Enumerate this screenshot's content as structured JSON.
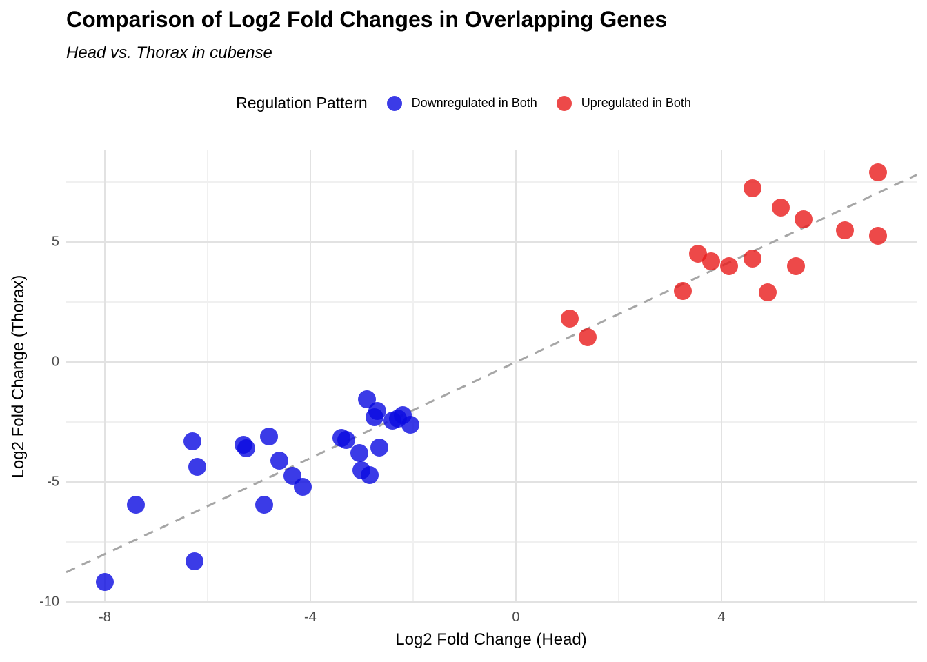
{
  "title": "Comparison of Log2 Fold Changes in Overlapping Genes",
  "subtitle": "Head vs. Thorax in cubense",
  "legend": {
    "title": "Regulation Pattern",
    "items": [
      {
        "label": "Downregulated in Both",
        "color": "rgba(10,10,225,0.8)"
      },
      {
        "label": "Upregulated in Both",
        "color": "rgba(233,28,28,0.8)"
      }
    ]
  },
  "chart_data": {
    "type": "scatter",
    "title": "Comparison of Log2 Fold Changes in Overlapping Genes",
    "subtitle": "Head vs. Thorax in cubense",
    "xlabel": "Log2 Fold Change (Head)",
    "ylabel": "Log2 Fold Change (Thorax)",
    "xlim": [
      -8.75,
      7.8
    ],
    "ylim": [
      -10.05,
      8.85
    ],
    "x_major_ticks": [
      -8,
      -4,
      0,
      4
    ],
    "x_minor_gridlines": [
      -6,
      -2,
      2,
      6
    ],
    "y_major_ticks": [
      5,
      0,
      -5,
      -10
    ],
    "y_minor_gridlines": [
      7.5,
      2.5,
      -2.5,
      -7.5
    ],
    "grid": true,
    "legend_position": "top",
    "reference_line": {
      "type": "identity_y_equals_x",
      "style": "dashed",
      "color": "#a6a6a6"
    },
    "series": [
      {
        "name": "Downregulated in Both",
        "color": "rgba(10,10,225,0.8)",
        "points": [
          [
            -8.0,
            -9.15
          ],
          [
            -7.4,
            -5.95
          ],
          [
            -6.3,
            -3.3
          ],
          [
            -6.25,
            -8.3
          ],
          [
            -6.2,
            -4.35
          ],
          [
            -5.3,
            -3.45
          ],
          [
            -5.25,
            -3.6
          ],
          [
            -4.9,
            -5.95
          ],
          [
            -4.8,
            -3.1
          ],
          [
            -4.6,
            -4.1
          ],
          [
            -4.35,
            -4.75
          ],
          [
            -4.15,
            -5.2
          ],
          [
            -3.4,
            -3.15
          ],
          [
            -3.3,
            -3.25
          ],
          [
            -3.05,
            -3.8
          ],
          [
            -3.0,
            -4.5
          ],
          [
            -2.9,
            -1.55
          ],
          [
            -2.85,
            -4.7
          ],
          [
            -2.75,
            -2.3
          ],
          [
            -2.7,
            -2.05
          ],
          [
            -2.65,
            -3.55
          ],
          [
            -2.4,
            -2.45
          ],
          [
            -2.3,
            -2.35
          ],
          [
            -2.2,
            -2.2
          ],
          [
            -2.05,
            -2.6
          ]
        ]
      },
      {
        "name": "Upregulated in Both",
        "color": "rgba(233,28,28,0.8)",
        "points": [
          [
            1.05,
            1.8
          ],
          [
            1.4,
            1.05
          ],
          [
            3.25,
            2.95
          ],
          [
            3.55,
            4.5
          ],
          [
            3.8,
            4.2
          ],
          [
            4.15,
            4.0
          ],
          [
            4.6,
            4.3
          ],
          [
            4.6,
            7.25
          ],
          [
            4.9,
            2.9
          ],
          [
            5.15,
            6.45
          ],
          [
            5.45,
            4.0
          ],
          [
            5.6,
            5.95
          ],
          [
            6.4,
            5.5
          ],
          [
            7.05,
            5.25
          ],
          [
            7.05,
            7.9
          ]
        ]
      }
    ]
  }
}
